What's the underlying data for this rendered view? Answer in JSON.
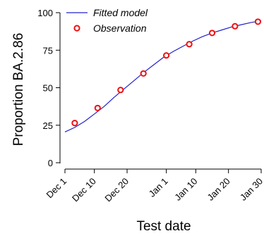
{
  "chart_data": {
    "type": "line",
    "title": "",
    "xlabel": "Test date",
    "ylabel": "Proportion BA.2.86",
    "x_ticks": [
      {
        "date": "2023-12-01",
        "label": "Dec 1"
      },
      {
        "date": "2023-12-10",
        "label": "Dec 10"
      },
      {
        "date": "2023-12-20",
        "label": "Dec 20"
      },
      {
        "date": "2024-01-01",
        "label": "Jan 1"
      },
      {
        "date": "2024-01-10",
        "label": "Jan 10"
      },
      {
        "date": "2024-01-20",
        "label": "Jan 20"
      },
      {
        "date": "2024-01-30",
        "label": "Jan 30"
      }
    ],
    "y_ticks": [
      0,
      25,
      50,
      75,
      100
    ],
    "ylim": [
      0,
      100
    ],
    "xlim": [
      "2023-12-01",
      "2024-01-30"
    ],
    "grid": false,
    "legend_position": "top-left",
    "series": [
      {
        "name": "Fitted model",
        "kind": "line",
        "color": "#2222cc",
        "points": [
          {
            "x": "2023-12-01",
            "y": 20.5
          },
          {
            "x": "2023-12-04",
            "y": 23.5
          },
          {
            "x": "2023-12-07",
            "y": 27.5
          },
          {
            "x": "2023-12-10",
            "y": 32.5
          },
          {
            "x": "2023-12-13",
            "y": 37.5
          },
          {
            "x": "2023-12-16",
            "y": 43.5
          },
          {
            "x": "2023-12-19",
            "y": 49.0
          },
          {
            "x": "2023-12-22",
            "y": 54.5
          },
          {
            "x": "2023-12-25",
            "y": 60.0
          },
          {
            "x": "2023-12-28",
            "y": 65.0
          },
          {
            "x": "2023-12-31",
            "y": 70.0
          },
          {
            "x": "2024-01-03",
            "y": 74.0
          },
          {
            "x": "2024-01-06",
            "y": 77.5
          },
          {
            "x": "2024-01-09",
            "y": 81.0
          },
          {
            "x": "2024-01-12",
            "y": 84.0
          },
          {
            "x": "2024-01-15",
            "y": 86.5
          },
          {
            "x": "2024-01-18",
            "y": 88.5
          },
          {
            "x": "2024-01-21",
            "y": 90.5
          },
          {
            "x": "2024-01-24",
            "y": 92.0
          },
          {
            "x": "2024-01-27",
            "y": 93.5
          },
          {
            "x": "2024-01-30",
            "y": 94.5
          }
        ]
      },
      {
        "name": "Observation",
        "kind": "scatter",
        "color": "#ee1111",
        "points": [
          {
            "x": "2023-12-04",
            "y": 26.5
          },
          {
            "x": "2023-12-11",
            "y": 36.5
          },
          {
            "x": "2023-12-18",
            "y": 48.5
          },
          {
            "x": "2023-12-25",
            "y": 59.5
          },
          {
            "x": "2024-01-01",
            "y": 71.5
          },
          {
            "x": "2024-01-08",
            "y": 79.0
          },
          {
            "x": "2024-01-15",
            "y": 86.5
          },
          {
            "x": "2024-01-22",
            "y": 91.0
          },
          {
            "x": "2024-01-29",
            "y": 94.0
          }
        ]
      }
    ]
  }
}
